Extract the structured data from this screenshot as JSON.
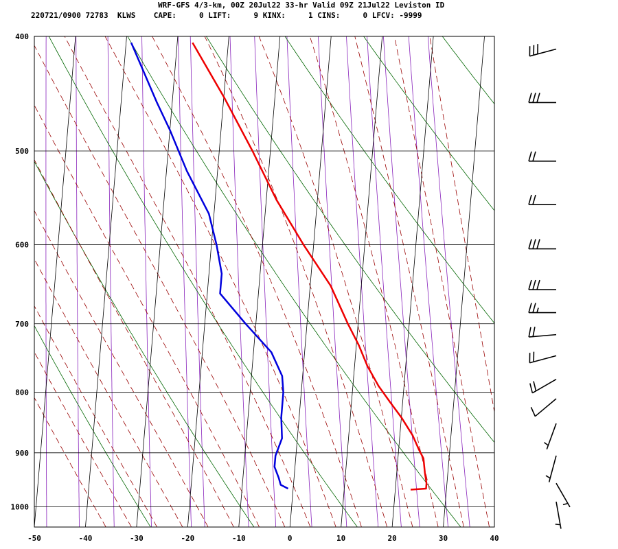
{
  "header": {
    "line1": "WRF-GFS 4/3-km, 00Z 20Jul22 33-hr Valid 09Z 21Jul22 Leviston ID",
    "line2": "220721/0900 72783  KLWS    CAPE:     0 LIFT:     9 KINX:     1 CINS:     0 LFCV: -9999"
  },
  "colors": {
    "temperature": "#ee0000",
    "dewpoint": "#0000dd",
    "isotherm_grid": "#000000",
    "dry_adiabat": "#006600",
    "moist_adiabat": "#990000",
    "mixing_ratio": "#8822bb",
    "wind_barb": "#000000"
  },
  "chart_data": {
    "type": "skew-t",
    "xlim": [
      -50,
      40
    ],
    "ylim": [
      1040,
      400
    ],
    "xticks": [
      "-50",
      "-40",
      "-30",
      "-20",
      "-10",
      "0",
      "10",
      "20",
      "30",
      "40"
    ],
    "yticks": [
      "400",
      "500",
      "600",
      "700",
      "800",
      "900",
      "1000"
    ],
    "grid": true,
    "series": [
      {
        "key": "temperature",
        "points": [
          [
            967,
            23
          ],
          [
            965,
            26
          ],
          [
            955,
            26
          ],
          [
            935,
            25.5
          ],
          [
            910,
            25
          ],
          [
            895,
            24
          ],
          [
            870,
            22.5
          ],
          [
            840,
            20
          ],
          [
            815,
            17.5
          ],
          [
            790,
            15
          ],
          [
            760,
            12.5
          ],
          [
            730,
            10.5
          ],
          [
            700,
            8
          ],
          [
            650,
            4
          ],
          [
            600,
            -2
          ],
          [
            550,
            -8
          ],
          [
            500,
            -13.5
          ],
          [
            450,
            -20
          ],
          [
            405,
            -27
          ]
        ]
      },
      {
        "key": "dewpoint",
        "points": [
          [
            965,
            -1
          ],
          [
            958,
            -2.5
          ],
          [
            945,
            -3
          ],
          [
            925,
            -4
          ],
          [
            905,
            -4
          ],
          [
            875,
            -3
          ],
          [
            840,
            -3.5
          ],
          [
            800,
            -3.5
          ],
          [
            775,
            -4
          ],
          [
            740,
            -6.5
          ],
          [
            700,
            -12
          ],
          [
            660,
            -17.5
          ],
          [
            635,
            -17.5
          ],
          [
            600,
            -19
          ],
          [
            565,
            -21
          ],
          [
            520,
            -26
          ],
          [
            480,
            -30
          ],
          [
            455,
            -33
          ],
          [
            405,
            -39
          ]
        ]
      }
    ],
    "wind_barbs": [
      {
        "p": 410,
        "dir": 255,
        "kt": 30
      },
      {
        "p": 455,
        "dir": 270,
        "kt": 30
      },
      {
        "p": 510,
        "dir": 270,
        "kt": 20
      },
      {
        "p": 555,
        "dir": 270,
        "kt": 20
      },
      {
        "p": 605,
        "dir": 270,
        "kt": 30
      },
      {
        "p": 655,
        "dir": 270,
        "kt": 30
      },
      {
        "p": 685,
        "dir": 270,
        "kt": 25
      },
      {
        "p": 715,
        "dir": 265,
        "kt": 20
      },
      {
        "p": 745,
        "dir": 255,
        "kt": 20
      },
      {
        "p": 780,
        "dir": 240,
        "kt": 20
      },
      {
        "p": 810,
        "dir": 230,
        "kt": 10
      },
      {
        "p": 850,
        "dir": 200,
        "kt": 5
      },
      {
        "p": 905,
        "dir": 195,
        "kt": 5
      },
      {
        "p": 955,
        "dir": 150,
        "kt": 5
      },
      {
        "p": 990,
        "dir": 170,
        "kt": 5
      }
    ]
  }
}
